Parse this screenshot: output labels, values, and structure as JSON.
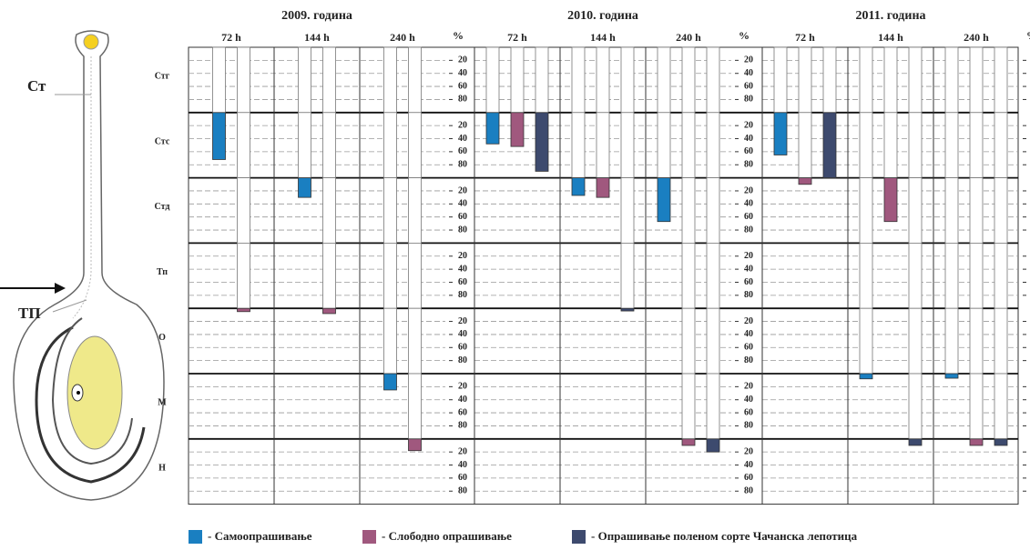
{
  "chart_data": {
    "type": "bar",
    "rows": [
      "Стг",
      "Стс",
      "Стд",
      "Тп",
      "О",
      "М",
      "Н"
    ],
    "y_label": "%",
    "ylim": [
      0,
      100
    ],
    "yticks": [
      20,
      40,
      60,
      80
    ],
    "diagram_labels": [
      "Ст",
      "ТП"
    ],
    "series": [
      {
        "name": "- Самоопрашивање",
        "color": "#1a7fc1"
      },
      {
        "name": "- Слободно опрашивање",
        "color": "#a0587e"
      },
      {
        "name": "- Опрашивање поленом сорте Чачанска лепотица",
        "color": "#3d4a6e"
      }
    ],
    "panels": [
      {
        "title": "2009. година",
        "times": [
          {
            "label": "72 h",
            "series": [
              [
                100,
                72,
                null,
                null,
                null,
                null,
                null
              ],
              [
                100,
                100,
                100,
                100,
                5,
                null,
                null
              ],
              null
            ]
          },
          {
            "label": "144 h",
            "series": [
              [
                100,
                100,
                30,
                null,
                null,
                null,
                null
              ],
              [
                100,
                100,
                100,
                100,
                8,
                null,
                null
              ],
              null
            ]
          },
          {
            "label": "240 h",
            "series": [
              [
                100,
                100,
                100,
                100,
                100,
                25,
                null
              ],
              [
                100,
                100,
                100,
                100,
                100,
                100,
                18
              ],
              null
            ]
          }
        ]
      },
      {
        "title": "2010. година",
        "times": [
          {
            "label": "72 h",
            "series": [
              [
                100,
                48,
                null,
                null,
                null,
                null,
                null
              ],
              [
                100,
                52,
                null,
                null,
                null,
                null,
                null
              ],
              [
                100,
                90,
                null,
                null,
                null,
                null,
                null
              ]
            ]
          },
          {
            "label": "144 h",
            "series": [
              [
                100,
                100,
                27,
                null,
                null,
                null,
                null
              ],
              [
                100,
                100,
                30,
                null,
                null,
                null,
                null
              ],
              [
                100,
                100,
                100,
                100,
                4,
                null,
                null
              ]
            ]
          },
          {
            "label": "240 h",
            "series": [
              [
                100,
                100,
                67,
                null,
                null,
                null,
                null
              ],
              [
                100,
                100,
                100,
                100,
                100,
                100,
                10
              ],
              [
                100,
                100,
                100,
                100,
                100,
                100,
                20
              ]
            ]
          }
        ]
      },
      {
        "title": "2011. година",
        "times": [
          {
            "label": "72 h",
            "series": [
              [
                100,
                65,
                null,
                null,
                null,
                null,
                null
              ],
              [
                100,
                100,
                10,
                null,
                null,
                null,
                null
              ],
              [
                100,
                100,
                null,
                null,
                null,
                null,
                null
              ]
            ]
          },
          {
            "label": "144 h",
            "series": [
              [
                100,
                100,
                100,
                100,
                100,
                8,
                null
              ],
              [
                100,
                100,
                67,
                null,
                null,
                null,
                null
              ],
              [
                100,
                100,
                100,
                100,
                100,
                100,
                10
              ]
            ]
          },
          {
            "label": "240 h",
            "series": [
              [
                100,
                100,
                100,
                100,
                100,
                7,
                null
              ],
              [
                100,
                100,
                100,
                100,
                100,
                100,
                10
              ],
              [
                100,
                100,
                100,
                100,
                100,
                100,
                10
              ]
            ]
          }
        ]
      }
    ]
  }
}
